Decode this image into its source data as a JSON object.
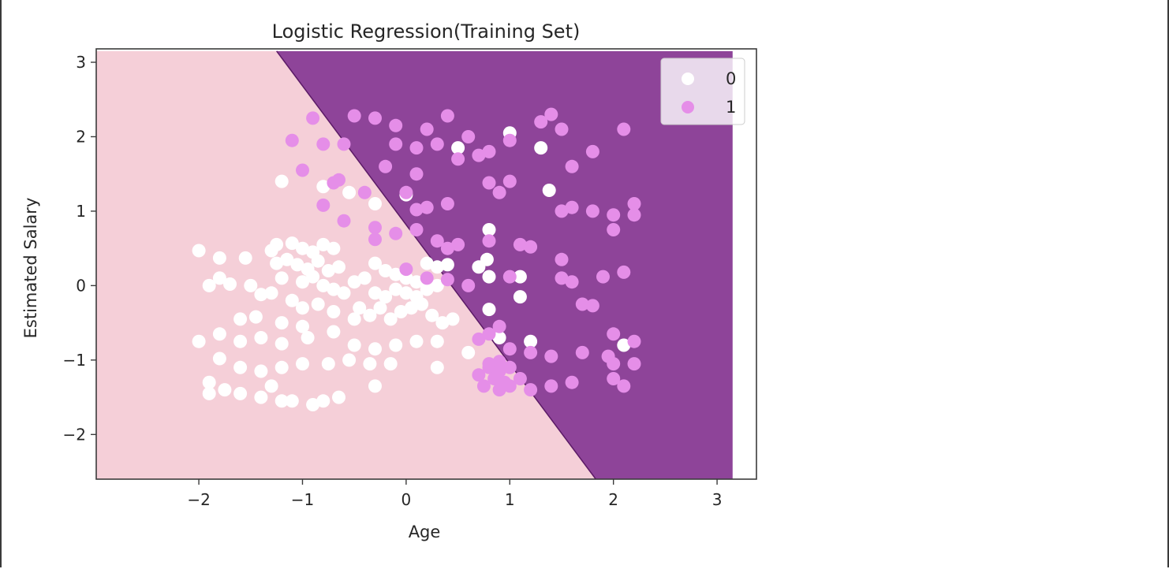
{
  "chart_data": {
    "type": "scatter",
    "title": "Logistic Regression(Training Set)",
    "xlabel": "Age",
    "ylabel": "Estimated Salary",
    "xlim": [
      -2.99,
      3.38
    ],
    "ylim": [
      -2.6,
      3.18
    ],
    "xticks": [
      -2,
      -1,
      0,
      1,
      2,
      3
    ],
    "xtick_labels": [
      "−2",
      "−1",
      "0",
      "1",
      "2",
      "3"
    ],
    "yticks": [
      -2,
      -1,
      0,
      1,
      2,
      3
    ],
    "ytick_labels": [
      "−2",
      "−1",
      "0",
      "1",
      "2",
      "3"
    ],
    "region_extent": {
      "x": [
        -2.99,
        3.15
      ],
      "y": [
        -2.6,
        3.15
      ]
    },
    "decision_boundary": [
      [
        -1.25,
        3.15
      ],
      [
        1.83,
        -2.6
      ]
    ],
    "regions": [
      {
        "class": "0",
        "color": "#f5cfd8"
      },
      {
        "class": "1",
        "color": "#8e4499"
      }
    ],
    "grid": false,
    "legend_position": "top-right",
    "series": [
      {
        "name": "0",
        "color": "#ffffff",
        "points": [
          [
            -2.0,
            0.47
          ],
          [
            -1.8,
            0.37
          ],
          [
            -1.8,
            0.1
          ],
          [
            -1.9,
            0.0
          ],
          [
            -1.7,
            0.02
          ],
          [
            -1.55,
            0.37
          ],
          [
            -1.5,
            0.0
          ],
          [
            -1.4,
            -0.12
          ],
          [
            -1.3,
            0.47
          ],
          [
            -1.25,
            0.55
          ],
          [
            -1.25,
            0.3
          ],
          [
            -1.1,
            0.57
          ],
          [
            -1.0,
            0.5
          ],
          [
            -0.9,
            0.45
          ],
          [
            -0.8,
            0.55
          ],
          [
            -0.7,
            0.5
          ],
          [
            -1.15,
            0.35
          ],
          [
            -1.05,
            0.28
          ],
          [
            -0.95,
            0.22
          ],
          [
            -0.85,
            0.33
          ],
          [
            -0.75,
            0.2
          ],
          [
            -0.65,
            0.25
          ],
          [
            -1.2,
            0.1
          ],
          [
            -1.0,
            0.05
          ],
          [
            -0.9,
            0.12
          ],
          [
            -0.8,
            0.0
          ],
          [
            -0.7,
            -0.05
          ],
          [
            -1.3,
            -0.1
          ],
          [
            -1.1,
            -0.2
          ],
          [
            -1.0,
            -0.3
          ],
          [
            -0.85,
            -0.25
          ],
          [
            -0.6,
            -0.1
          ],
          [
            -0.5,
            0.05
          ],
          [
            -0.4,
            0.1
          ],
          [
            -0.3,
            0.3
          ],
          [
            -0.2,
            0.2
          ],
          [
            -0.1,
            0.15
          ],
          [
            0.0,
            0.1
          ],
          [
            0.1,
            0.05
          ],
          [
            0.2,
            0.3
          ],
          [
            0.3,
            0.25
          ],
          [
            0.4,
            0.28
          ],
          [
            -0.45,
            -0.3
          ],
          [
            -0.35,
            -0.4
          ],
          [
            -0.25,
            -0.3
          ],
          [
            -0.15,
            -0.45
          ],
          [
            -0.05,
            -0.35
          ],
          [
            0.05,
            -0.3
          ],
          [
            0.15,
            -0.25
          ],
          [
            0.25,
            -0.4
          ],
          [
            0.35,
            -0.5
          ],
          [
            0.45,
            -0.45
          ],
          [
            -0.3,
            -0.1
          ],
          [
            -0.2,
            -0.15
          ],
          [
            -0.1,
            -0.05
          ],
          [
            0.0,
            -0.1
          ],
          [
            0.1,
            -0.15
          ],
          [
            0.2,
            -0.05
          ],
          [
            0.3,
            0.0
          ],
          [
            -1.6,
            -0.45
          ],
          [
            -1.45,
            -0.42
          ],
          [
            -1.2,
            -0.5
          ],
          [
            -1.0,
            -0.55
          ],
          [
            -0.7,
            -0.35
          ],
          [
            -0.5,
            -0.45
          ],
          [
            -2.0,
            -0.75
          ],
          [
            -1.8,
            -0.65
          ],
          [
            -1.6,
            -0.75
          ],
          [
            -1.4,
            -0.7
          ],
          [
            -1.2,
            -0.78
          ],
          [
            -0.95,
            -0.7
          ],
          [
            -0.7,
            -0.62
          ],
          [
            -0.5,
            -0.8
          ],
          [
            -0.3,
            -0.85
          ],
          [
            -0.1,
            -0.8
          ],
          [
            0.1,
            -0.75
          ],
          [
            0.3,
            -0.75
          ],
          [
            -1.8,
            -0.98
          ],
          [
            -1.6,
            -1.1
          ],
          [
            -1.4,
            -1.15
          ],
          [
            -1.2,
            -1.1
          ],
          [
            -1.0,
            -1.05
          ],
          [
            -0.75,
            -1.05
          ],
          [
            -0.55,
            -1.0
          ],
          [
            -0.35,
            -1.05
          ],
          [
            -0.15,
            -1.05
          ],
          [
            0.3,
            -1.1
          ],
          [
            -1.9,
            -1.3
          ],
          [
            -1.75,
            -1.4
          ],
          [
            -1.6,
            -1.45
          ],
          [
            -1.4,
            -1.5
          ],
          [
            -1.2,
            -1.55
          ],
          [
            -1.1,
            -1.55
          ],
          [
            -0.9,
            -1.6
          ],
          [
            -0.8,
            -1.55
          ],
          [
            -0.65,
            -1.5
          ],
          [
            -0.3,
            -1.35
          ],
          [
            -1.9,
            -1.45
          ],
          [
            -1.3,
            -1.35
          ],
          [
            -0.8,
            1.33
          ],
          [
            -1.2,
            1.4
          ],
          [
            -0.55,
            1.25
          ],
          [
            -0.3,
            1.1
          ],
          [
            0.0,
            1.22
          ],
          [
            0.5,
            1.85
          ],
          [
            1.0,
            2.05
          ],
          [
            1.3,
            1.85
          ],
          [
            1.38,
            1.28
          ],
          [
            0.8,
            0.75
          ],
          [
            0.78,
            0.35
          ],
          [
            0.8,
            0.12
          ],
          [
            0.7,
            0.25
          ],
          [
            1.1,
            0.12
          ],
          [
            1.1,
            -0.15
          ],
          [
            0.8,
            -0.32
          ],
          [
            0.9,
            -0.7
          ],
          [
            1.2,
            -0.75
          ],
          [
            2.1,
            -0.8
          ],
          [
            0.6,
            -0.9
          ]
        ]
      },
      {
        "name": "1",
        "color": "#e58ee8",
        "points": [
          [
            -0.9,
            2.25
          ],
          [
            -1.1,
            1.95
          ],
          [
            -0.8,
            1.9
          ],
          [
            -0.6,
            1.9
          ],
          [
            -1.0,
            1.55
          ],
          [
            -0.65,
            1.42
          ],
          [
            -0.7,
            1.38
          ],
          [
            -0.4,
            1.25
          ],
          [
            -0.8,
            1.08
          ],
          [
            -0.6,
            0.87
          ],
          [
            -0.3,
            0.78
          ],
          [
            -0.3,
            0.62
          ],
          [
            -0.1,
            0.7
          ],
          [
            -0.5,
            2.28
          ],
          [
            -0.3,
            2.25
          ],
          [
            -0.1,
            2.15
          ],
          [
            0.2,
            2.1
          ],
          [
            0.4,
            2.28
          ],
          [
            0.6,
            2.0
          ],
          [
            0.8,
            1.8
          ],
          [
            1.0,
            1.95
          ],
          [
            1.3,
            2.2
          ],
          [
            1.4,
            2.3
          ],
          [
            1.5,
            2.1
          ],
          [
            -0.1,
            1.9
          ],
          [
            0.1,
            1.85
          ],
          [
            0.3,
            1.9
          ],
          [
            0.5,
            1.7
          ],
          [
            0.7,
            1.75
          ],
          [
            0.8,
            1.38
          ],
          [
            0.9,
            1.25
          ],
          [
            1.0,
            1.4
          ],
          [
            1.6,
            1.6
          ],
          [
            1.8,
            1.8
          ],
          [
            2.1,
            2.1
          ],
          [
            -0.2,
            1.6
          ],
          [
            0.1,
            1.5
          ],
          [
            0.0,
            1.25
          ],
          [
            0.2,
            1.05
          ],
          [
            0.4,
            1.1
          ],
          [
            0.1,
            1.02
          ],
          [
            1.5,
            1.0
          ],
          [
            1.6,
            1.05
          ],
          [
            1.8,
            1.0
          ],
          [
            2.0,
            0.95
          ],
          [
            2.2,
            1.1
          ],
          [
            2.0,
            0.75
          ],
          [
            2.2,
            0.95
          ],
          [
            0.1,
            0.75
          ],
          [
            0.3,
            0.6
          ],
          [
            0.4,
            0.5
          ],
          [
            0.5,
            0.55
          ],
          [
            0.8,
            0.6
          ],
          [
            1.1,
            0.55
          ],
          [
            1.2,
            0.52
          ],
          [
            1.5,
            0.35
          ],
          [
            0.0,
            0.22
          ],
          [
            0.2,
            0.1
          ],
          [
            0.4,
            0.08
          ],
          [
            0.6,
            0.0
          ],
          [
            1.0,
            0.12
          ],
          [
            1.5,
            0.1
          ],
          [
            1.6,
            0.05
          ],
          [
            1.9,
            0.12
          ],
          [
            2.1,
            0.18
          ],
          [
            1.8,
            -0.27
          ],
          [
            0.7,
            -0.72
          ],
          [
            0.9,
            -0.55
          ],
          [
            1.0,
            -0.85
          ],
          [
            1.2,
            -0.9
          ],
          [
            1.4,
            -0.95
          ],
          [
            1.7,
            -0.9
          ],
          [
            2.0,
            -1.05
          ],
          [
            2.2,
            -1.05
          ],
          [
            2.2,
            -0.75
          ],
          [
            2.0,
            -0.65
          ],
          [
            0.7,
            -1.2
          ],
          [
            0.8,
            -1.1
          ],
          [
            0.9,
            -1.15
          ],
          [
            0.85,
            -1.25
          ],
          [
            0.95,
            -1.3
          ],
          [
            0.75,
            -1.35
          ],
          [
            0.9,
            -1.4
          ],
          [
            1.0,
            -1.35
          ],
          [
            1.1,
            -1.25
          ],
          [
            1.2,
            -1.4
          ],
          [
            1.4,
            -1.35
          ],
          [
            1.6,
            -1.3
          ],
          [
            2.0,
            -1.25
          ],
          [
            2.1,
            -1.35
          ],
          [
            0.8,
            -1.05
          ],
          [
            0.9,
            -1.02
          ],
          [
            1.0,
            -1.1
          ],
          [
            0.8,
            -0.65
          ],
          [
            1.95,
            -0.95
          ],
          [
            1.7,
            -0.25
          ]
        ]
      }
    ]
  }
}
